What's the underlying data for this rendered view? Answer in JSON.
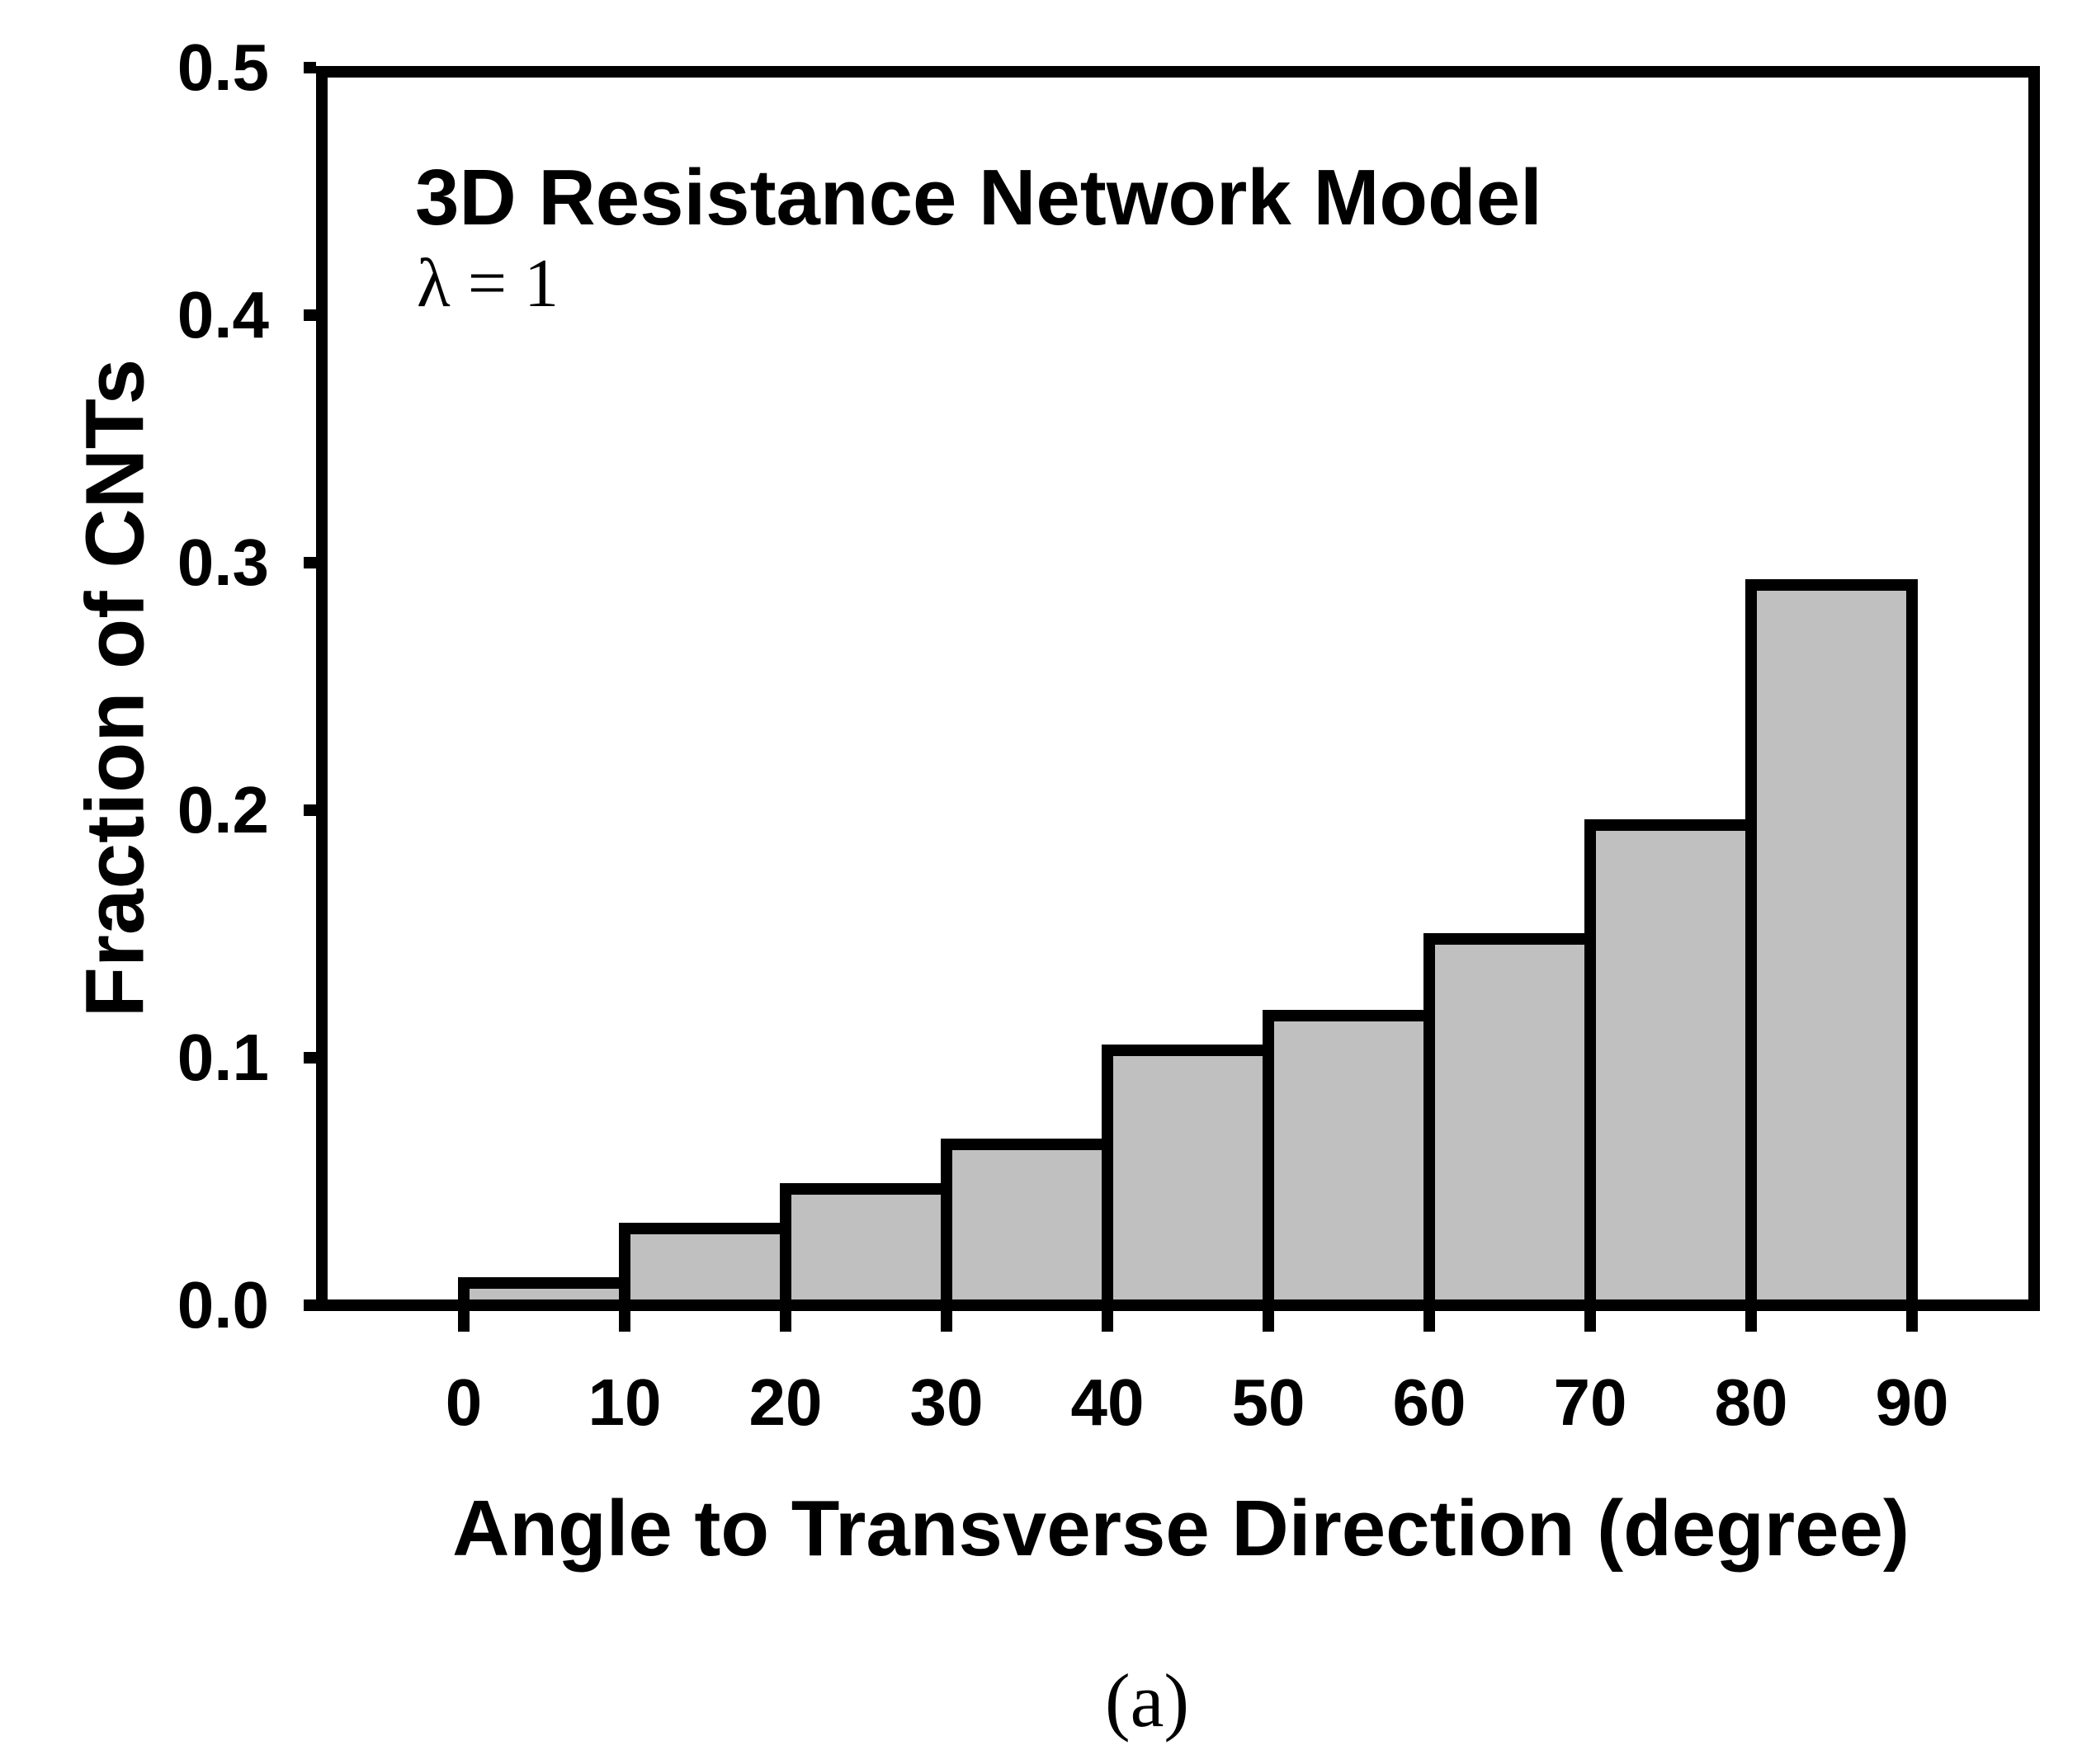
{
  "figure": {
    "panel_label": "(a)"
  },
  "chart_data": {
    "type": "bar",
    "subtype": "histogram",
    "title": "3D Resistance Network Model",
    "annotation": "λ = 1",
    "xlabel": "Angle to Transverse Direction (degree)",
    "ylabel": "Fraction of CNTs",
    "bin_edges_deg": [
      0,
      10,
      20,
      30,
      40,
      50,
      60,
      70,
      80,
      90
    ],
    "categories": [
      "0-10",
      "10-20",
      "20-30",
      "30-40",
      "40-50",
      "50-60",
      "60-70",
      "70-80",
      "80-90"
    ],
    "values": [
      0.009,
      0.031,
      0.047,
      0.065,
      0.103,
      0.117,
      0.148,
      0.194,
      0.291
    ],
    "x_tick_labels": [
      "0",
      "10",
      "20",
      "30",
      "40",
      "50",
      "60",
      "70",
      "80",
      "90"
    ],
    "y_tick_labels": [
      "0.0",
      "0.1",
      "0.2",
      "0.3",
      "0.4",
      "0.5"
    ],
    "y_ticks": [
      0.0,
      0.1,
      0.2,
      0.3,
      0.4,
      0.5
    ],
    "ylim": [
      0,
      0.5
    ],
    "grid": false,
    "legend": null,
    "bar_fill_color": "#c0c0c0",
    "bar_border_color": "#000000",
    "axis_color": "#000000"
  }
}
